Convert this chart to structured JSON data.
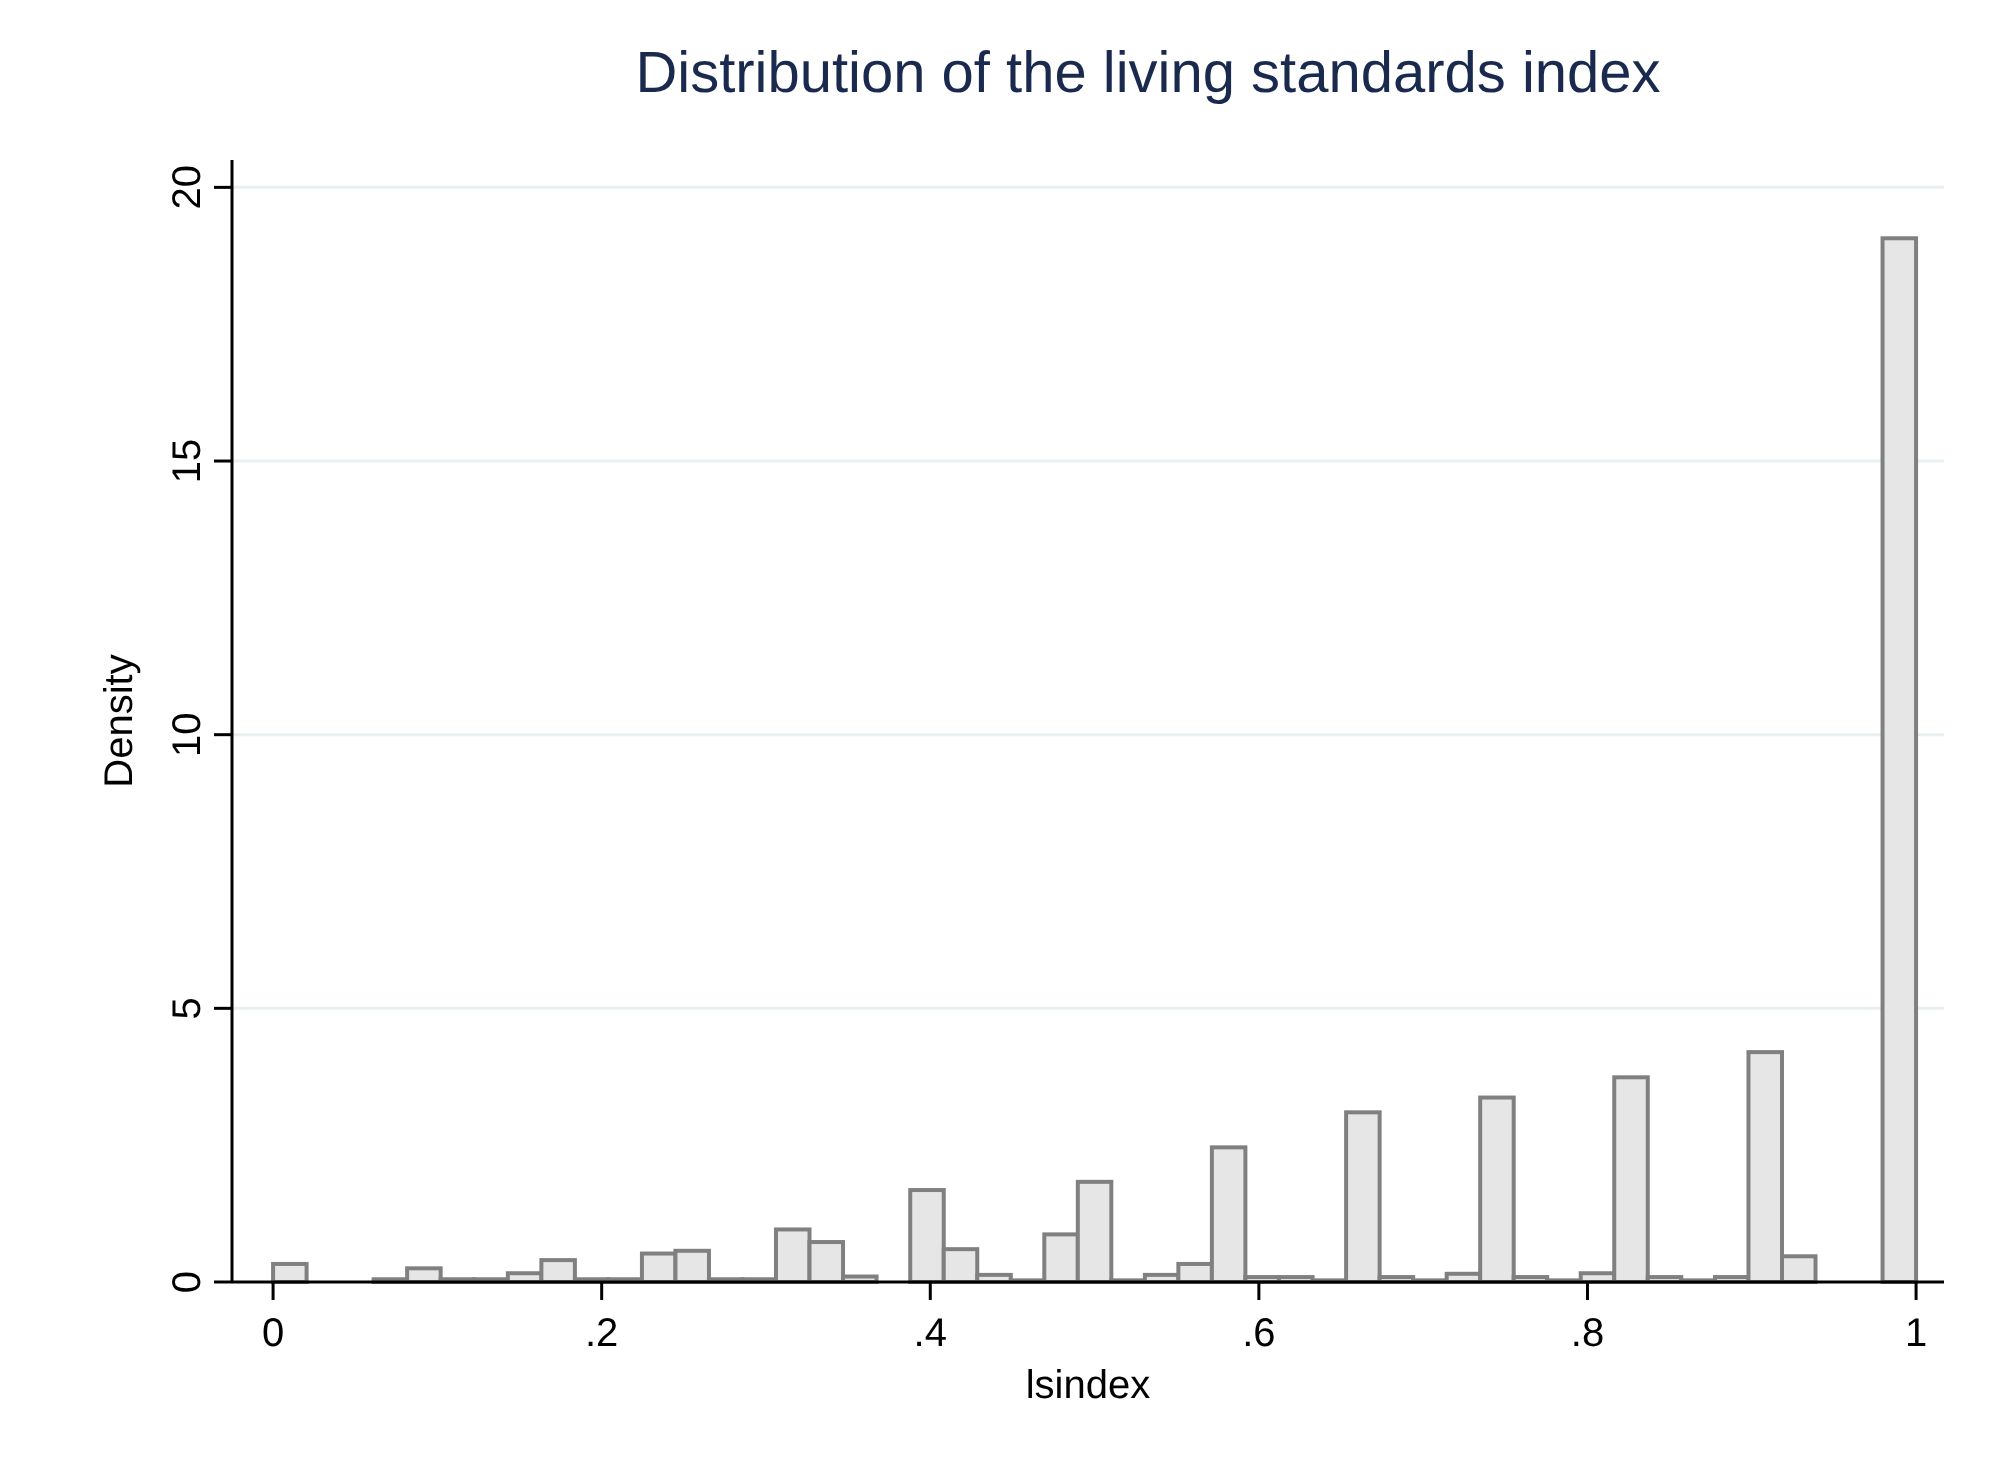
{
  "chart_data": {
    "type": "histogram",
    "title": "Distribution of the living standards index",
    "xlabel": "lsindex",
    "ylabel": "Density",
    "bins": [
      0,
      0.0204,
      0.0408,
      0.0612,
      0.0816,
      0.102,
      0.1224,
      0.1429,
      0.1633,
      0.1837,
      0.2041,
      0.2245,
      0.2449,
      0.2653,
      0.2857,
      0.3061,
      0.3265,
      0.3469,
      0.3673,
      0.3878,
      0.4082,
      0.4286,
      0.449,
      0.4694,
      0.4898,
      0.5102,
      0.5306,
      0.551,
      0.5714,
      0.5918,
      0.6122,
      0.6327,
      0.6531,
      0.6735,
      0.6939,
      0.7143,
      0.7347,
      0.7551,
      0.7755,
      0.7959,
      0.8163,
      0.8367,
      0.8571,
      0.8776,
      0.898,
      0.9184,
      0.9388,
      0.9592,
      0.9796,
      1
    ],
    "values": [
      0.33,
      0,
      0,
      0.05,
      0.25,
      0.05,
      0.05,
      0.16,
      0.4,
      0.05,
      0.05,
      0.52,
      0.57,
      0.05,
      0.05,
      0.96,
      0.73,
      0.1,
      0,
      1.68,
      0.6,
      0.13,
      0.03,
      0.87,
      1.83,
      0.03,
      0.13,
      0.33,
      2.46,
      0.09,
      0.09,
      0.03,
      3.1,
      0.09,
      0.03,
      0.15,
      3.37,
      0.09,
      0.03,
      0.16,
      3.74,
      0.09,
      0.03,
      0.09,
      4.2,
      0.47,
      0,
      0,
      19.07
    ],
    "color": "#e6e6e6",
    "xlim": [
      -0.025,
      1.017
    ],
    "xticks": [
      0,
      {
        "value": 0.2,
        "label": ".2"
      },
      {
        "value": 0.4,
        "label": ".4"
      },
      {
        "value": 0.6,
        "label": ".6"
      },
      {
        "value": 0.8,
        "label": ".8"
      },
      1
    ],
    "ylim": [
      0,
      20.5
    ],
    "yticks": [
      0,
      5,
      10,
      15,
      20
    ],
    "grid": "y"
  }
}
